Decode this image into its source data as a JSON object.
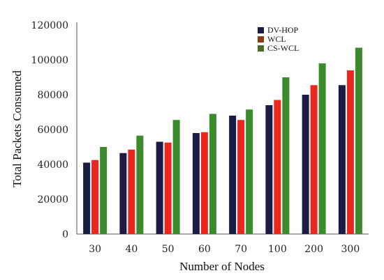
{
  "chart_data": {
    "type": "bar",
    "title": "",
    "xlabel": "Number of Nodes",
    "ylabel": "Total Packets Consumed",
    "categories": [
      "30",
      "40",
      "50",
      "60",
      "70",
      "100",
      "200",
      "300"
    ],
    "ylim": [
      0,
      120000
    ],
    "yticks": [
      0,
      20000,
      40000,
      60000,
      80000,
      100000,
      120000
    ],
    "grid": false,
    "legend_position": "top-right",
    "series": [
      {
        "name": "DV-HOP",
        "color": "#1c1b44",
        "values": [
          41000,
          46500,
          53000,
          58000,
          68000,
          74000,
          80000,
          85500
        ]
      },
      {
        "name": "WCL",
        "color": "#e8281f",
        "legend_color": "#8b3a12",
        "values": [
          42500,
          48500,
          52500,
          58500,
          65500,
          77000,
          85500,
          94000
        ]
      },
      {
        "name": "CS-WCL",
        "color": "#3b8a2b",
        "legend_color": "#4a6b2a",
        "values": [
          50000,
          56500,
          65500,
          69000,
          71500,
          90000,
          98000,
          107000
        ]
      }
    ]
  }
}
